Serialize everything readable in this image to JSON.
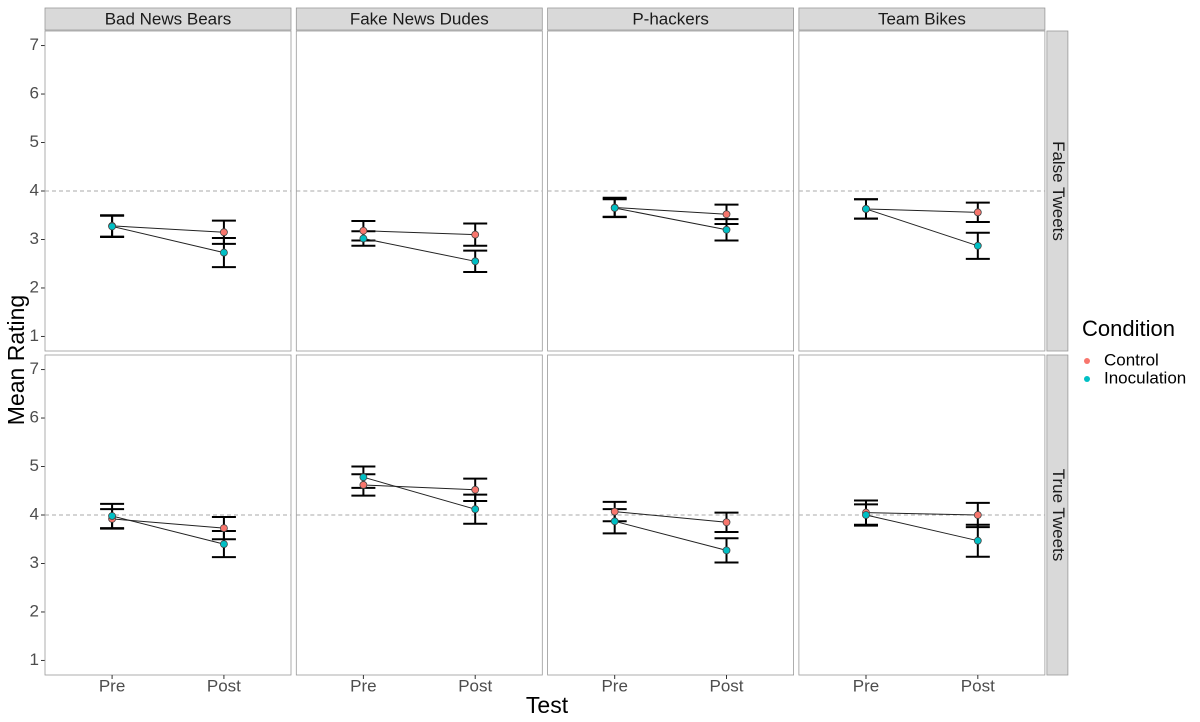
{
  "chart_data": {
    "type": "line",
    "x_label": "Test",
    "y_label": "Mean Rating",
    "categories": [
      "Pre",
      "Post"
    ],
    "ylim": [
      0.7,
      7.3
    ],
    "yticks": [
      1,
      2,
      3,
      4,
      5,
      6,
      7
    ],
    "reference_line": 4,
    "legend_title": "Condition",
    "legend_position": "right",
    "series": [
      {
        "name": "Control",
        "color": "#F8766D"
      },
      {
        "name": "Inoculation",
        "color": "#00BFC4"
      }
    ],
    "col_facets": [
      "Bad News Bears",
      "Fake News Dudes",
      "P-hackers",
      "Team Bikes"
    ],
    "row_facets": [
      "False Tweets",
      "True Tweets"
    ],
    "panels": [
      [
        {
          "series": [
            {
              "values": [
                3.28,
                3.15
              ],
              "errors": [
                0.22,
                0.24
              ]
            },
            {
              "values": [
                3.27,
                2.73
              ],
              "errors": [
                0.22,
                0.3
              ]
            }
          ]
        },
        {
          "series": [
            {
              "values": [
                3.18,
                3.1
              ],
              "errors": [
                0.2,
                0.23
              ]
            },
            {
              "values": [
                3.02,
                2.55
              ],
              "errors": [
                0.15,
                0.22
              ]
            }
          ]
        },
        {
          "series": [
            {
              "values": [
                3.66,
                3.52
              ],
              "errors": [
                0.2,
                0.2
              ]
            },
            {
              "values": [
                3.65,
                3.2
              ],
              "errors": [
                0.18,
                0.22
              ]
            }
          ]
        },
        {
          "series": [
            {
              "values": [
                3.63,
                3.56
              ],
              "errors": [
                0.2,
                0.2
              ]
            },
            {
              "values": [
                3.63,
                2.87
              ],
              "errors": [
                0.2,
                0.27
              ]
            }
          ]
        }
      ],
      [
        {
          "series": [
            {
              "values": [
                3.92,
                3.73
              ],
              "errors": [
                0.2,
                0.23
              ]
            },
            {
              "values": [
                3.98,
                3.4
              ],
              "errors": [
                0.25,
                0.27
              ]
            }
          ]
        },
        {
          "series": [
            {
              "values": [
                4.62,
                4.52
              ],
              "errors": [
                0.22,
                0.23
              ]
            },
            {
              "values": [
                4.78,
                4.12
              ],
              "errors": [
                0.22,
                0.3
              ]
            }
          ]
        },
        {
          "series": [
            {
              "values": [
                4.07,
                3.85
              ],
              "errors": [
                0.2,
                0.2
              ]
            },
            {
              "values": [
                3.87,
                3.27
              ],
              "errors": [
                0.25,
                0.25
              ]
            }
          ]
        },
        {
          "series": [
            {
              "values": [
                4.05,
                4.0
              ],
              "errors": [
                0.25,
                0.25
              ]
            },
            {
              "values": [
                4.0,
                3.47
              ],
              "errors": [
                0.22,
                0.33
              ]
            }
          ]
        }
      ]
    ]
  }
}
